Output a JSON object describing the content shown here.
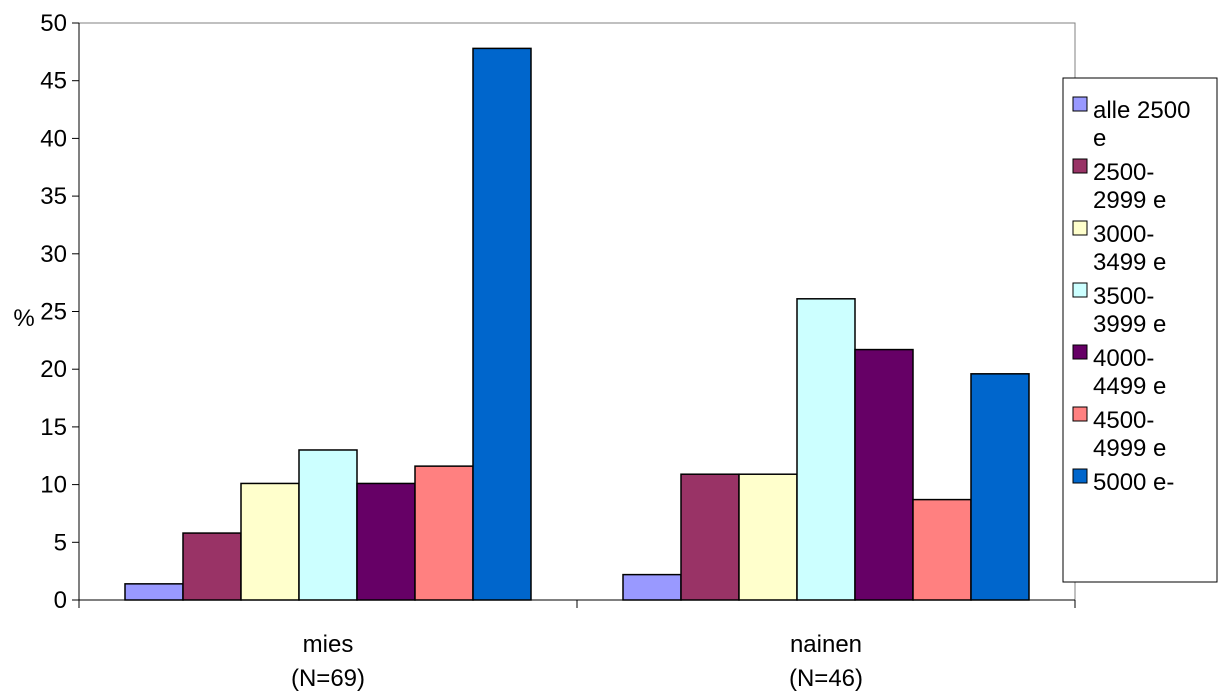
{
  "chart_data": {
    "type": "bar",
    "ylabel": "%",
    "xlabel": "",
    "title": "",
    "ylim": [
      0,
      50
    ],
    "yticks": [
      0,
      5,
      10,
      15,
      20,
      25,
      30,
      35,
      40,
      45,
      50
    ],
    "grid": false,
    "legend_position": "right",
    "categories": [
      [
        "mies",
        "(N=69)"
      ],
      [
        "nainen",
        "(N=46)"
      ]
    ],
    "series": [
      {
        "name": [
          "alle 2500",
          "e"
        ],
        "color": "#9999ff",
        "values": [
          1.4,
          2.2
        ]
      },
      {
        "name": [
          "2500-",
          "2999 e"
        ],
        "color": "#993366",
        "values": [
          5.8,
          10.9
        ]
      },
      {
        "name": [
          "3000-",
          "3499 e"
        ],
        "color": "#ffffcc",
        "values": [
          10.1,
          10.9
        ]
      },
      {
        "name": [
          "3500-",
          "3999 e"
        ],
        "color": "#ccffff",
        "values": [
          13.0,
          26.1
        ]
      },
      {
        "name": [
          "4000-",
          "4499 e"
        ],
        "color": "#660066",
        "values": [
          10.1,
          21.7
        ]
      },
      {
        "name": [
          "4500-",
          "4999 e"
        ],
        "color": "#ff8080",
        "values": [
          11.6,
          8.7
        ]
      },
      {
        "name": [
          "5000 e-"
        ],
        "color": "#0066cc",
        "values": [
          47.8,
          19.6
        ]
      }
    ]
  }
}
